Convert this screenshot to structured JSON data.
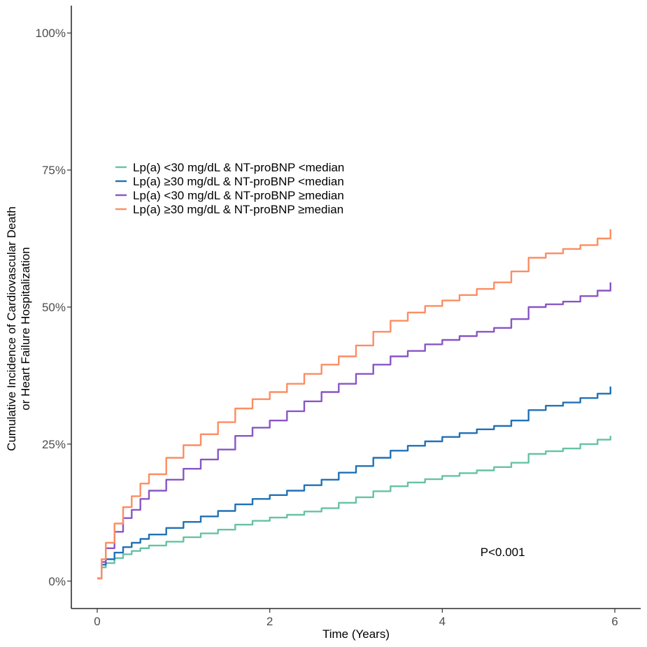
{
  "chart_data": {
    "type": "line",
    "title": "",
    "xlabel": "Time (Years)",
    "ylabel_line1": "Cumulative Incidence of Cardiovascular Death",
    "ylabel_line2": "or Heart Failure Hospitalization",
    "xlim": [
      -0.3,
      6.3
    ],
    "ylim": [
      -0.05,
      1.05
    ],
    "x_ticks": [
      0,
      2,
      4,
      6
    ],
    "x_tick_labels": [
      "0",
      "2",
      "4",
      "6"
    ],
    "y_ticks": [
      0,
      0.25,
      0.5,
      0.75,
      1.0
    ],
    "y_tick_labels": [
      "0%",
      "25%",
      "50%",
      "75%",
      "100%"
    ],
    "grid": false,
    "legend_position": "upper-left",
    "annotation": "P<0.001",
    "annotation_at": {
      "x": 4.7,
      "y": 0.046
    },
    "series": [
      {
        "name": "Lp(a) <30 mg/dL & NT-proBNP <median",
        "color": "#66c2a5",
        "x": [
          0,
          0.05,
          0.1,
          0.2,
          0.3,
          0.4,
          0.5,
          0.6,
          0.8,
          1.0,
          1.2,
          1.4,
          1.6,
          1.8,
          2.0,
          2.2,
          2.4,
          2.6,
          2.8,
          3.0,
          3.2,
          3.4,
          3.6,
          3.8,
          4.0,
          4.2,
          4.4,
          4.6,
          4.8,
          5.0,
          5.2,
          5.4,
          5.6,
          5.8,
          5.95
        ],
        "y": [
          0.005,
          0.025,
          0.033,
          0.042,
          0.049,
          0.055,
          0.06,
          0.065,
          0.072,
          0.08,
          0.087,
          0.094,
          0.103,
          0.11,
          0.116,
          0.121,
          0.127,
          0.133,
          0.143,
          0.153,
          0.164,
          0.173,
          0.18,
          0.186,
          0.192,
          0.197,
          0.202,
          0.208,
          0.216,
          0.232,
          0.237,
          0.242,
          0.25,
          0.258,
          0.265
        ]
      },
      {
        "name": "Lp(a) ≥30 mg/dL & NT-proBNP <median",
        "color": "#2171b5",
        "x": [
          0,
          0.05,
          0.1,
          0.2,
          0.3,
          0.4,
          0.5,
          0.6,
          0.8,
          1.0,
          1.2,
          1.4,
          1.6,
          1.8,
          2.0,
          2.2,
          2.4,
          2.6,
          2.8,
          3.0,
          3.2,
          3.4,
          3.6,
          3.8,
          4.0,
          4.2,
          4.4,
          4.6,
          4.8,
          5.0,
          5.2,
          5.4,
          5.6,
          5.8,
          5.95
        ],
        "y": [
          0.005,
          0.03,
          0.04,
          0.052,
          0.062,
          0.07,
          0.077,
          0.085,
          0.097,
          0.108,
          0.118,
          0.128,
          0.14,
          0.15,
          0.157,
          0.165,
          0.175,
          0.185,
          0.198,
          0.21,
          0.225,
          0.238,
          0.247,
          0.255,
          0.263,
          0.27,
          0.277,
          0.283,
          0.293,
          0.312,
          0.32,
          0.326,
          0.334,
          0.342,
          0.355
        ]
      },
      {
        "name": "Lp(a) <30 mg/dL & NT-proBNP ≥median",
        "color": "#8856c4",
        "x": [
          0,
          0.05,
          0.1,
          0.2,
          0.3,
          0.4,
          0.5,
          0.6,
          0.8,
          1.0,
          1.2,
          1.4,
          1.6,
          1.8,
          2.0,
          2.2,
          2.4,
          2.6,
          2.8,
          3.0,
          3.2,
          3.4,
          3.6,
          3.8,
          4.0,
          4.2,
          4.4,
          4.6,
          4.8,
          5.0,
          5.2,
          5.4,
          5.6,
          5.8,
          5.95
        ],
        "y": [
          0.005,
          0.035,
          0.06,
          0.09,
          0.115,
          0.13,
          0.15,
          0.165,
          0.185,
          0.205,
          0.222,
          0.24,
          0.265,
          0.28,
          0.293,
          0.31,
          0.328,
          0.345,
          0.36,
          0.378,
          0.395,
          0.41,
          0.42,
          0.432,
          0.44,
          0.447,
          0.455,
          0.462,
          0.478,
          0.5,
          0.505,
          0.51,
          0.52,
          0.53,
          0.545
        ]
      },
      {
        "name": "Lp(a) ≥30 mg/dL & NT-proBNP ≥median",
        "color": "#fc8d62",
        "x": [
          0,
          0.05,
          0.1,
          0.2,
          0.3,
          0.4,
          0.5,
          0.6,
          0.8,
          1.0,
          1.2,
          1.4,
          1.6,
          1.8,
          2.0,
          2.2,
          2.4,
          2.6,
          2.8,
          3.0,
          3.2,
          3.4,
          3.6,
          3.8,
          4.0,
          4.2,
          4.4,
          4.6,
          4.8,
          5.0,
          5.2,
          5.4,
          5.6,
          5.8,
          5.95
        ],
        "y": [
          0.005,
          0.04,
          0.07,
          0.105,
          0.135,
          0.155,
          0.178,
          0.195,
          0.225,
          0.248,
          0.268,
          0.29,
          0.315,
          0.332,
          0.345,
          0.36,
          0.378,
          0.395,
          0.41,
          0.43,
          0.455,
          0.475,
          0.49,
          0.502,
          0.512,
          0.522,
          0.533,
          0.545,
          0.565,
          0.59,
          0.598,
          0.606,
          0.613,
          0.625,
          0.642
        ]
      }
    ]
  }
}
